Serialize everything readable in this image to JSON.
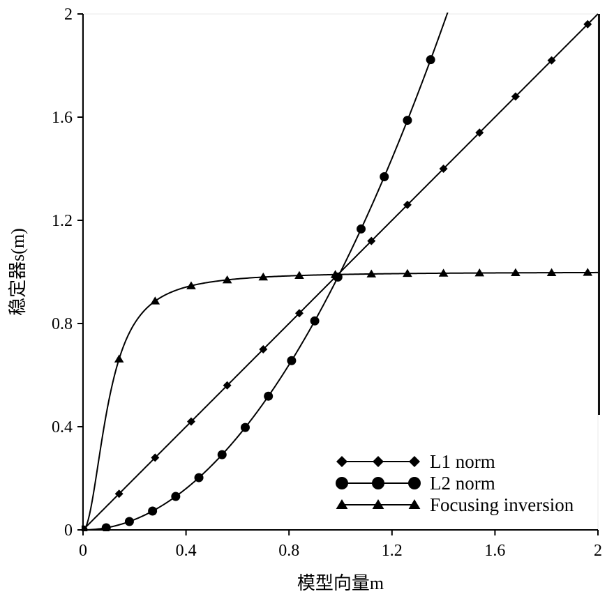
{
  "chart_data": {
    "type": "line",
    "xlabel": "模型向量m",
    "ylabel": "稳定器s(m)",
    "xlim": [
      0,
      2
    ],
    "ylim": [
      0,
      2
    ],
    "x_ticks": [
      "0",
      "0.4",
      "0.8",
      "1.2",
      "1.6",
      "2"
    ],
    "y_ticks": [
      "0",
      "0.4",
      "0.8",
      "1.2",
      "1.6",
      "2"
    ],
    "grid": false,
    "legend_position": "bottom-right",
    "series": [
      {
        "name": "L1 norm",
        "marker": "diamond",
        "x": [
          0,
          0.14,
          0.28,
          0.42,
          0.56,
          0.7,
          0.84,
          0.98,
          1.12,
          1.26,
          1.4,
          1.54,
          1.68,
          1.82,
          1.96
        ],
        "y": [
          0,
          0.14,
          0.28,
          0.42,
          0.56,
          0.7,
          0.84,
          0.98,
          1.12,
          1.26,
          1.4,
          1.54,
          1.68,
          1.82,
          1.96
        ]
      },
      {
        "name": "L2 norm",
        "marker": "circle",
        "x": [
          0,
          0.09,
          0.18,
          0.27,
          0.36,
          0.45,
          0.54,
          0.63,
          0.72,
          0.81,
          0.9,
          0.99,
          1.08,
          1.17,
          1.26,
          1.35
        ],
        "y": [
          0,
          0.0081,
          0.0324,
          0.0729,
          0.1296,
          0.2025,
          0.2916,
          0.3969,
          0.5184,
          0.6561,
          0.81,
          0.9801,
          1.1664,
          1.3689,
          1.5876,
          1.8225
        ]
      },
      {
        "name": "Focusing inversion",
        "marker": "triangle",
        "x": [
          0,
          0.14,
          0.28,
          0.42,
          0.56,
          0.7,
          0.84,
          0.98,
          1.12,
          1.26,
          1.4,
          1.54,
          1.68,
          1.82,
          1.96
        ],
        "y": [
          0,
          0.662,
          0.887,
          0.946,
          0.969,
          0.98,
          0.986,
          0.99,
          0.992,
          0.994,
          0.995,
          0.996,
          0.997,
          0.997,
          0.998
        ]
      }
    ]
  }
}
